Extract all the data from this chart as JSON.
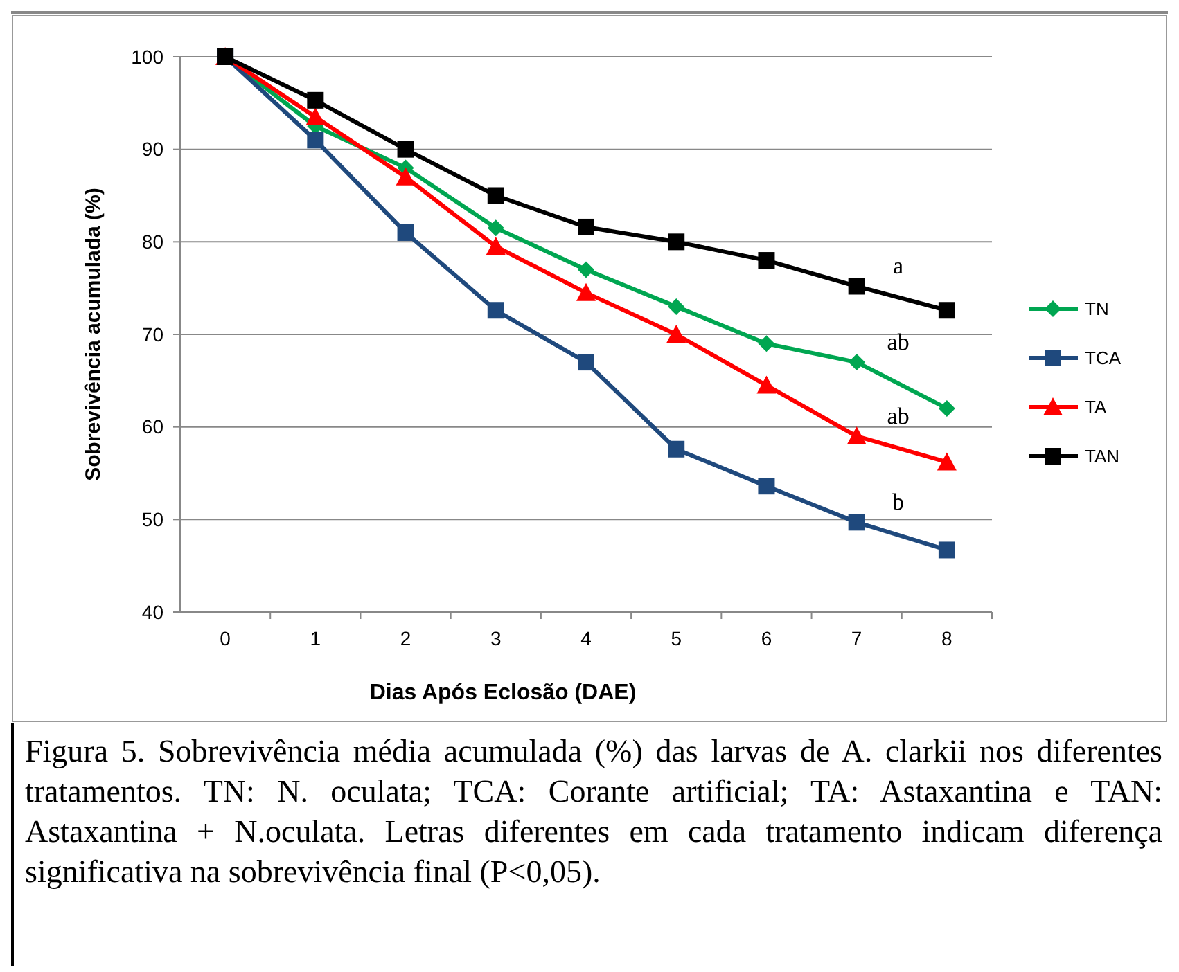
{
  "chart_data": {
    "type": "line",
    "xlabel": "Dias Após Eclosão (DAE)",
    "ylabel": "Sobrevivência acumulada (%)",
    "categories": [
      "0",
      "1",
      "2",
      "3",
      "4",
      "5",
      "6",
      "7",
      "8"
    ],
    "ylim": [
      40,
      100
    ],
    "yticks": [
      40,
      50,
      60,
      70,
      80,
      90,
      100
    ],
    "grid": "y",
    "legend": "right",
    "line_style": "solid",
    "series": [
      {
        "name": "TN",
        "color": "#00a651",
        "marker": "diamond",
        "values": [
          100,
          92.5,
          88,
          81.5,
          77,
          73,
          69,
          67,
          62
        ]
      },
      {
        "name": "TCA",
        "color": "#1f497d",
        "marker": "square",
        "values": [
          100,
          91,
          81,
          72.6,
          67,
          57.6,
          53.6,
          49.7,
          46.7
        ]
      },
      {
        "name": "TA",
        "color": "#ff0000",
        "marker": "triangle",
        "values": [
          100,
          93.5,
          87,
          79.5,
          74.5,
          70,
          64.5,
          59,
          56.2
        ]
      },
      {
        "name": "TAN",
        "color": "#000000",
        "marker": "square",
        "values": [
          100,
          95.3,
          90,
          85,
          81.6,
          80,
          78,
          75.2,
          72.6
        ]
      }
    ],
    "annotations": [
      {
        "text": "a",
        "x": "7",
        "y": 75.2
      },
      {
        "text": "ab",
        "x": "7",
        "y": 67
      },
      {
        "text": "ab",
        "x": "7",
        "y": 59
      },
      {
        "text": "b",
        "x": "7",
        "y": 49.7
      },
      "Figura 5. Sobrevivência média acumulada (%) das larvas de A. clarkii nos diferentes tratamentos. TN: N. oculata; TCA: Corante artificial; TA: Astaxantina e TAN: Astaxantina + N.oculata. Letras diferentes em cada tratamento indicam diferença significativa na sobrevivência final (P<0,05)."
    ]
  }
}
